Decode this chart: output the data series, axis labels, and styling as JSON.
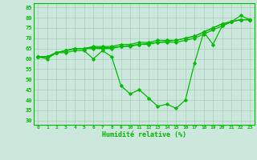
{
  "xlabel": "Humidité relative (%)",
  "xlim": [
    -0.5,
    23.5
  ],
  "ylim": [
    28,
    87
  ],
  "yticks": [
    30,
    35,
    40,
    45,
    50,
    55,
    60,
    65,
    70,
    75,
    80,
    85
  ],
  "xticks": [
    0,
    1,
    2,
    3,
    4,
    5,
    6,
    7,
    8,
    9,
    10,
    11,
    12,
    13,
    14,
    15,
    16,
    17,
    18,
    19,
    20,
    21,
    22,
    23
  ],
  "bg_color": "#cce8dc",
  "grid_color": "#aaccbb",
  "line_color": "#00bb00",
  "line1": [
    61,
    60,
    63,
    63,
    64,
    64,
    60,
    64,
    61,
    47,
    43,
    45,
    41,
    37,
    38,
    36,
    40,
    58,
    73,
    67,
    76,
    78,
    81,
    79
  ],
  "line2": [
    61,
    61,
    63,
    64,
    65,
    65,
    65,
    65,
    65,
    66,
    66,
    67,
    67,
    68,
    68,
    68,
    69,
    70,
    72,
    74,
    76,
    78,
    79,
    79
  ],
  "line3": [
    61,
    61,
    63,
    64,
    65,
    65,
    65.5,
    65.5,
    65.5,
    66,
    66.5,
    67,
    67.5,
    68,
    68.5,
    69,
    70,
    71,
    73,
    75,
    77,
    78,
    79,
    79
  ],
  "line4": [
    61,
    61,
    63,
    64,
    65,
    65,
    66,
    66,
    66,
    67,
    67,
    68,
    68,
    69,
    69,
    69,
    70,
    71,
    73,
    75,
    77,
    78,
    79,
    79
  ]
}
